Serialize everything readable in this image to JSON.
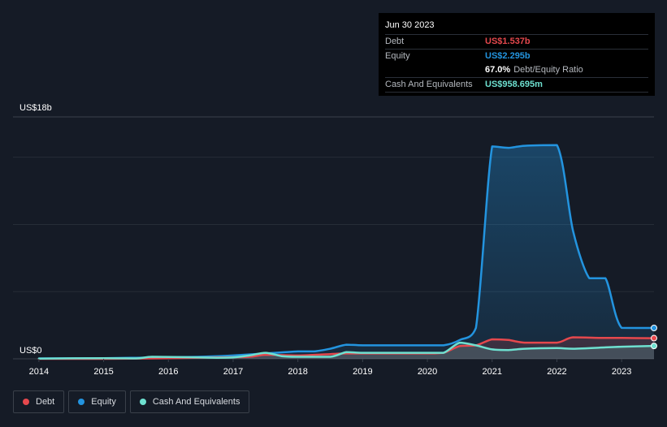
{
  "tooltip": {
    "date": "Jun 30 2023",
    "debt_label": "Debt",
    "debt_value": "US$1.537b",
    "equity_label": "Equity",
    "equity_value": "US$2.295b",
    "ratio_value": "67.0%",
    "ratio_label": "Debt/Equity Ratio",
    "cash_label": "Cash And Equivalents",
    "cash_value": "US$958.695m"
  },
  "legend": {
    "debt": "Debt",
    "equity": "Equity",
    "cash": "Cash And Equivalents"
  },
  "colors": {
    "debt": "#e5484d",
    "equity": "#2394df",
    "cash": "#6ee0d0",
    "background": "#151b26",
    "grid": "#2c333d"
  },
  "chart_data": {
    "type": "line",
    "title": "",
    "ylabel": "",
    "xlabel": "",
    "y_unit_label_top": "US$18b",
    "y_unit_label_bottom": "US$0",
    "ylim": [
      0,
      18
    ],
    "xlim": [
      2013.6,
      2023.5
    ],
    "x_ticks": [
      "2014",
      "2015",
      "2016",
      "2017",
      "2018",
      "2019",
      "2020",
      "2021",
      "2022",
      "2023"
    ],
    "series": [
      {
        "name": "Equity",
        "color": "#2394df",
        "filled": true,
        "points": [
          [
            2014.0,
            0.03
          ],
          [
            2015.0,
            0.05
          ],
          [
            2015.5,
            0.08
          ],
          [
            2016.0,
            0.12
          ],
          [
            2016.5,
            0.15
          ],
          [
            2017.0,
            0.25
          ],
          [
            2017.5,
            0.4
          ],
          [
            2018.0,
            0.55
          ],
          [
            2018.25,
            0.55
          ],
          [
            2018.5,
            0.75
          ],
          [
            2018.75,
            1.05
          ],
          [
            2019.0,
            1.0
          ],
          [
            2019.5,
            1.0
          ],
          [
            2020.0,
            1.0
          ],
          [
            2020.25,
            1.0
          ],
          [
            2020.5,
            1.4
          ],
          [
            2020.75,
            2.3
          ],
          [
            2021.0,
            15.8
          ],
          [
            2021.25,
            15.7
          ],
          [
            2021.5,
            15.85
          ],
          [
            2022.0,
            15.9
          ],
          [
            2022.25,
            9.5
          ],
          [
            2022.5,
            6.0
          ],
          [
            2022.75,
            6.0
          ],
          [
            2023.0,
            2.3
          ],
          [
            2023.5,
            2.295
          ]
        ]
      },
      {
        "name": "Debt",
        "color": "#e5484d",
        "filled": true,
        "points": [
          [
            2014.0,
            0.0
          ],
          [
            2015.0,
            0.0
          ],
          [
            2016.0,
            0.05
          ],
          [
            2016.75,
            0.1
          ],
          [
            2017.25,
            0.15
          ],
          [
            2017.5,
            0.3
          ],
          [
            2018.0,
            0.25
          ],
          [
            2018.5,
            0.35
          ],
          [
            2018.75,
            0.4
          ],
          [
            2019.0,
            0.4
          ],
          [
            2019.5,
            0.4
          ],
          [
            2020.0,
            0.4
          ],
          [
            2020.25,
            0.45
          ],
          [
            2020.5,
            0.95
          ],
          [
            2020.75,
            1.0
          ],
          [
            2021.0,
            1.45
          ],
          [
            2021.25,
            1.4
          ],
          [
            2021.5,
            1.2
          ],
          [
            2022.0,
            1.2
          ],
          [
            2022.25,
            1.6
          ],
          [
            2022.75,
            1.55
          ],
          [
            2023.0,
            1.55
          ],
          [
            2023.5,
            1.537
          ]
        ]
      },
      {
        "name": "Cash And Equivalents",
        "color": "#6ee0d0",
        "filled": true,
        "points": [
          [
            2014.0,
            0.02
          ],
          [
            2015.0,
            0.05
          ],
          [
            2015.5,
            0.03
          ],
          [
            2015.75,
            0.15
          ],
          [
            2016.25,
            0.12
          ],
          [
            2016.75,
            0.08
          ],
          [
            2017.0,
            0.1
          ],
          [
            2017.25,
            0.25
          ],
          [
            2017.5,
            0.45
          ],
          [
            2017.75,
            0.2
          ],
          [
            2018.0,
            0.15
          ],
          [
            2018.5,
            0.15
          ],
          [
            2018.75,
            0.5
          ],
          [
            2019.0,
            0.45
          ],
          [
            2019.5,
            0.45
          ],
          [
            2020.0,
            0.45
          ],
          [
            2020.25,
            0.45
          ],
          [
            2020.5,
            1.2
          ],
          [
            2020.75,
            1.0
          ],
          [
            2021.0,
            0.7
          ],
          [
            2021.25,
            0.65
          ],
          [
            2021.5,
            0.75
          ],
          [
            2022.0,
            0.8
          ],
          [
            2022.25,
            0.75
          ],
          [
            2022.75,
            0.85
          ],
          [
            2023.0,
            0.9
          ],
          [
            2023.5,
            0.9587
          ]
        ]
      }
    ]
  }
}
